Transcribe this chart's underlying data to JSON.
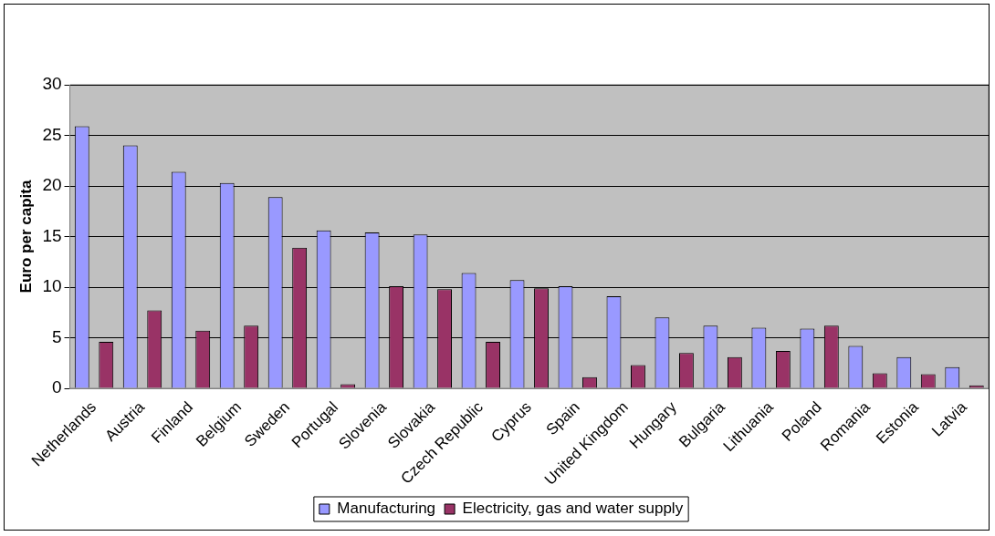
{
  "chart_data": {
    "type": "bar",
    "ylabel": "Euro per capita",
    "categories": [
      "Netherlands",
      "Austria",
      "Finland",
      "Belgium",
      "Sweden",
      "Portugal",
      "Slovenia",
      "Slovakia",
      "Czech Republic",
      "Cyprus",
      "Spain",
      "United Kingdom",
      "Hungary",
      "Bulgaria",
      "Lithuania",
      "Poland",
      "Romania",
      "Estonia",
      "Latvia"
    ],
    "series": [
      {
        "name": "Manufacturing",
        "color": "#9999ff",
        "values": [
          25.9,
          24.0,
          21.4,
          20.3,
          18.9,
          15.6,
          15.4,
          15.2,
          11.4,
          10.7,
          10.1,
          9.1,
          7.0,
          6.2,
          6.0,
          5.9,
          4.2,
          3.1,
          2.1
        ]
      },
      {
        "name": "Electricity, gas and water supply",
        "color": "#993366",
        "values": [
          4.6,
          7.7,
          5.7,
          6.2,
          13.9,
          0.4,
          10.1,
          9.8,
          4.6,
          9.9,
          1.1,
          2.3,
          3.5,
          3.1,
          3.7,
          6.2,
          1.5,
          1.4,
          0.3
        ]
      }
    ],
    "ylim": [
      0,
      30
    ],
    "yticks": [
      0,
      5,
      10,
      15,
      20,
      25,
      30
    ],
    "grid": "y",
    "legend": "bottom"
  }
}
